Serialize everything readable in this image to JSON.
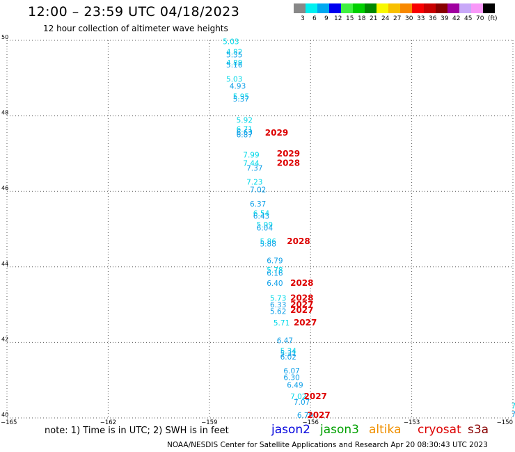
{
  "header": {
    "title": "12:00 – 23:59 UTC 04/18/2023",
    "subtitle": "12 hour collection of altimeter wave heights"
  },
  "legend": {
    "unit": "(ft)",
    "bins": [
      {
        "color": "#888888",
        "label": "3"
      },
      {
        "color": "#00f0f0",
        "label": "6"
      },
      {
        "color": "#00a8f0",
        "label": "9"
      },
      {
        "color": "#0000f0",
        "label": "12"
      },
      {
        "color": "#40f040",
        "label": "15"
      },
      {
        "color": "#00d000",
        "label": "18"
      },
      {
        "color": "#008800",
        "label": "21"
      },
      {
        "color": "#f8f800",
        "label": "24"
      },
      {
        "color": "#f8c000",
        "label": "27"
      },
      {
        "color": "#f88800",
        "label": "30"
      },
      {
        "color": "#f80000",
        "label": "33"
      },
      {
        "color": "#c80000",
        "label": "36"
      },
      {
        "color": "#880000",
        "label": "39"
      },
      {
        "color": "#a000a0",
        "label": "42"
      },
      {
        "color": "#c8a8f8",
        "label": "45"
      },
      {
        "color": "#f898f8",
        "label": "70"
      },
      {
        "color": "#000000",
        "label": ""
      }
    ]
  },
  "axes": {
    "lon_min": -165,
    "lon_max": -150,
    "lat_min": 40,
    "lat_max": 50,
    "x_ticks": [
      {
        "value": -165,
        "label": "−165"
      },
      {
        "value": -162,
        "label": "−162"
      },
      {
        "value": -159,
        "label": "−159"
      },
      {
        "value": -156,
        "label": "−156"
      },
      {
        "value": -153,
        "label": "−153"
      },
      {
        "value": -150,
        "label": "−150"
      }
    ],
    "y_ticks": [
      {
        "value": 40,
        "label": "40"
      },
      {
        "value": 42,
        "label": "42"
      },
      {
        "value": 44,
        "label": "44"
      },
      {
        "value": 46,
        "label": "46"
      },
      {
        "value": 48,
        "label": "48"
      },
      {
        "value": 50,
        "label": "50"
      }
    ],
    "grid": true
  },
  "colors": {
    "cyan": "#00d8e8",
    "lightblue": "#10a0e8",
    "cycle_red": "#dd0000"
  },
  "wave_heights": [
    {
      "lon": -158.6,
      "lat": 49.9,
      "value": "5.03",
      "color": "cyan"
    },
    {
      "lon": -158.5,
      "lat": 49.62,
      "value": "4.82",
      "color": "cyan"
    },
    {
      "lon": -158.5,
      "lat": 49.55,
      "value": "5.35",
      "color": "lightblue"
    },
    {
      "lon": -158.5,
      "lat": 49.34,
      "value": "4.89",
      "color": "cyan"
    },
    {
      "lon": -158.5,
      "lat": 49.28,
      "value": "5.16",
      "color": "lightblue"
    },
    {
      "lon": -158.5,
      "lat": 48.9,
      "value": "5.03",
      "color": "cyan"
    },
    {
      "lon": -158.4,
      "lat": 48.72,
      "value": "4.93",
      "color": "lightblue"
    },
    {
      "lon": -158.3,
      "lat": 48.44,
      "value": "5.95",
      "color": "cyan"
    },
    {
      "lon": -158.3,
      "lat": 48.38,
      "value": "5.37",
      "color": "lightblue"
    },
    {
      "lon": -158.2,
      "lat": 47.82,
      "value": "5.92",
      "color": "cyan"
    },
    {
      "lon": -158.2,
      "lat": 47.58,
      "value": "6.71",
      "color": "cyan"
    },
    {
      "lon": -158.2,
      "lat": 47.5,
      "value": "6.63",
      "color": "lightblue"
    },
    {
      "lon": -158.2,
      "lat": 47.43,
      "value": "6.87",
      "color": "lightblue"
    },
    {
      "lon": -158.0,
      "lat": 46.9,
      "value": "7.99",
      "color": "cyan"
    },
    {
      "lon": -158.0,
      "lat": 46.68,
      "value": "7.44",
      "color": "cyan"
    },
    {
      "lon": -157.9,
      "lat": 46.55,
      "value": "7.37",
      "color": "lightblue"
    },
    {
      "lon": -157.9,
      "lat": 46.18,
      "value": "7.23",
      "color": "cyan"
    },
    {
      "lon": -157.8,
      "lat": 45.98,
      "value": "7.02",
      "color": "lightblue"
    },
    {
      "lon": -157.8,
      "lat": 45.6,
      "value": "6.37",
      "color": "lightblue"
    },
    {
      "lon": -157.7,
      "lat": 45.35,
      "value": "6.54",
      "color": "cyan"
    },
    {
      "lon": -157.7,
      "lat": 45.28,
      "value": "6.43",
      "color": "lightblue"
    },
    {
      "lon": -157.6,
      "lat": 45.05,
      "value": "5.99",
      "color": "cyan"
    },
    {
      "lon": -157.6,
      "lat": 44.96,
      "value": "6.04",
      "color": "lightblue"
    },
    {
      "lon": -157.5,
      "lat": 44.6,
      "value": "5.86",
      "color": "cyan"
    },
    {
      "lon": -157.5,
      "lat": 44.54,
      "value": "5.88",
      "color": "lightblue"
    },
    {
      "lon": -157.3,
      "lat": 44.1,
      "value": "6.79",
      "color": "lightblue"
    },
    {
      "lon": -157.3,
      "lat": 43.85,
      "value": "5.78",
      "color": "cyan"
    },
    {
      "lon": -157.3,
      "lat": 43.77,
      "value": "6.16",
      "color": "lightblue"
    },
    {
      "lon": -157.3,
      "lat": 43.5,
      "value": "6.40",
      "color": "lightblue"
    },
    {
      "lon": -157.2,
      "lat": 43.1,
      "value": "5.73",
      "color": "cyan"
    },
    {
      "lon": -157.2,
      "lat": 42.93,
      "value": "6.33",
      "color": "lightblue"
    },
    {
      "lon": -157.2,
      "lat": 42.75,
      "value": "5.62",
      "color": "lightblue"
    },
    {
      "lon": -157.1,
      "lat": 42.45,
      "value": "5.71",
      "color": "cyan"
    },
    {
      "lon": -157.0,
      "lat": 41.98,
      "value": "6.47",
      "color": "lightblue"
    },
    {
      "lon": -156.9,
      "lat": 41.7,
      "value": "5.34",
      "color": "cyan"
    },
    {
      "lon": -156.9,
      "lat": 41.64,
      "value": "5.31",
      "color": "lightblue"
    },
    {
      "lon": -156.9,
      "lat": 41.55,
      "value": "6.02",
      "color": "lightblue"
    },
    {
      "lon": -156.8,
      "lat": 41.18,
      "value": "6.07",
      "color": "lightblue"
    },
    {
      "lon": -156.8,
      "lat": 41.0,
      "value": "6.30",
      "color": "lightblue"
    },
    {
      "lon": -156.7,
      "lat": 40.8,
      "value": "6.49",
      "color": "lightblue"
    },
    {
      "lon": -156.6,
      "lat": 40.5,
      "value": "7.02",
      "color": "cyan"
    },
    {
      "lon": -156.5,
      "lat": 40.35,
      "value": "7.07",
      "color": "lightblue"
    },
    {
      "lon": -156.4,
      "lat": 40.0,
      "value": "6.79",
      "color": "lightblue"
    },
    {
      "lon": -150.05,
      "lat": 40.25,
      "value": "7",
      "color": "cyan"
    },
    {
      "lon": -150.05,
      "lat": 40.03,
      "value": "7",
      "color": "lightblue"
    }
  ],
  "cycle_labels": [
    {
      "lon": -157.35,
      "lat": 47.48,
      "value": "2029"
    },
    {
      "lon": -157.0,
      "lat": 46.92,
      "value": "2029"
    },
    {
      "lon": -157.0,
      "lat": 46.68,
      "value": "2028"
    },
    {
      "lon": -156.7,
      "lat": 44.6,
      "value": "2028"
    },
    {
      "lon": -156.6,
      "lat": 43.5,
      "value": "2028"
    },
    {
      "lon": -156.6,
      "lat": 43.1,
      "value": "2028"
    },
    {
      "lon": -156.6,
      "lat": 42.93,
      "value": "2027"
    },
    {
      "lon": -156.6,
      "lat": 42.78,
      "value": "2027"
    },
    {
      "lon": -156.5,
      "lat": 42.45,
      "value": "2027"
    },
    {
      "lon": -156.2,
      "lat": 40.5,
      "value": "2027"
    },
    {
      "lon": -156.1,
      "lat": 40.0,
      "value": "2027"
    }
  ],
  "note": "note: 1) Time is in UTC; 2) SWH is in feet",
  "satellites": [
    {
      "name": "jason2",
      "color": "#0000dd"
    },
    {
      "name": "jason3",
      "color": "#00a000"
    },
    {
      "name": "altika",
      "color": "#f09000"
    },
    {
      "name": "cryosat",
      "color": "#dd0000"
    },
    {
      "name": "s3a",
      "color": "#880000"
    }
  ],
  "footer": "NOAA/NESDIS Center for Satellite Applications and Research    Apr 20 08:30:43 UTC 2023"
}
